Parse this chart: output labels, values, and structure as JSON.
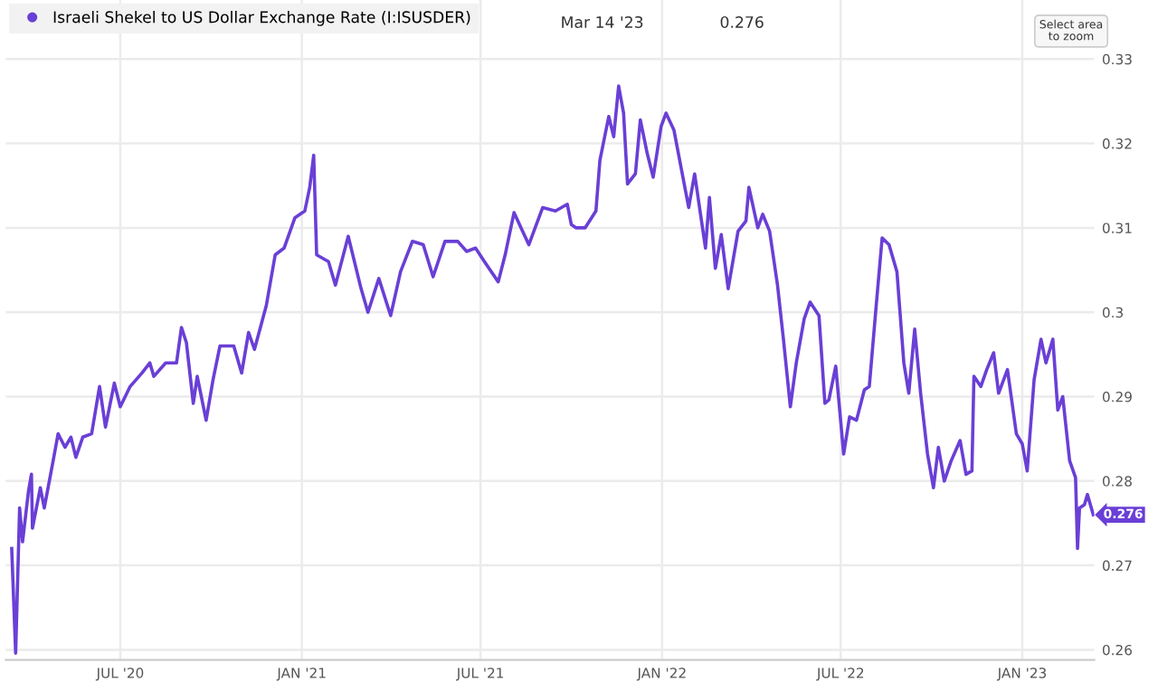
{
  "chart_data": {
    "type": "line",
    "annotations": [
      "Mar 14 '23",
      "0.276",
      "Select area\nto zoom",
      {
        "text": "0.276",
        "x": "2023-03-14",
        "y": 0.276
      }
    ],
    "x": [
      "2020-03-13",
      "2020-03-17",
      "2020-03-21",
      "2020-03-24",
      "2020-03-30",
      "2020-04-02",
      "2020-04-03",
      "2020-04-11",
      "2020-04-15",
      "2020-04-24",
      "2020-04-29",
      "2020-05-06",
      "2020-05-12",
      "2020-05-17",
      "2020-05-24",
      "2020-06-02",
      "2020-06-10",
      "2020-06-16",
      "2020-06-25",
      "2020-07-01",
      "2020-07-11",
      "2020-07-23",
      "2020-07-31",
      "2020-08-04",
      "2020-08-16",
      "2020-08-27",
      "2020-09-01",
      "2020-09-06",
      "2020-09-13",
      "2020-09-17",
      "2020-09-26",
      "2020-10-03",
      "2020-10-10",
      "2020-10-24",
      "2020-11-01",
      "2020-11-08",
      "2020-11-14",
      "2020-11-26",
      "2020-12-05",
      "2020-12-14",
      "2020-12-25",
      "2021-01-04",
      "2021-01-09",
      "2021-01-13",
      "2021-01-16",
      "2021-01-28",
      "2021-02-04",
      "2021-02-17",
      "2021-03-02",
      "2021-03-09",
      "2021-03-20",
      "2021-04-01",
      "2021-04-11",
      "2021-04-23",
      "2021-05-04",
      "2021-05-14",
      "2021-05-26",
      "2021-06-08",
      "2021-06-17",
      "2021-06-26",
      "2021-07-05",
      "2021-07-19",
      "2021-07-26",
      "2021-08-04",
      "2021-08-19",
      "2021-09-02",
      "2021-09-15",
      "2021-09-27",
      "2021-10-01",
      "2021-10-06",
      "2021-10-15",
      "2021-10-26",
      "2021-10-30",
      "2021-11-08",
      "2021-11-13",
      "2021-11-18",
      "2021-11-23",
      "2021-11-27",
      "2021-12-05",
      "2021-12-10",
      "2021-12-17",
      "2021-12-23",
      "2021-12-31",
      "2022-01-05",
      "2022-01-13",
      "2022-01-28",
      "2022-02-03",
      "2022-02-14",
      "2022-02-18",
      "2022-02-24",
      "2022-03-02",
      "2022-03-09",
      "2022-03-19",
      "2022-03-27",
      "2022-03-30",
      "2022-04-08",
      "2022-04-13",
      "2022-04-20",
      "2022-04-28",
      "2022-05-04",
      "2022-05-11",
      "2022-05-17",
      "2022-05-25",
      "2022-05-31",
      "2022-06-09",
      "2022-06-15",
      "2022-06-19",
      "2022-06-26",
      "2022-07-04",
      "2022-07-10",
      "2022-07-17",
      "2022-07-25",
      "2022-07-30",
      "2022-08-06",
      "2022-08-12",
      "2022-08-19",
      "2022-08-27",
      "2022-09-03",
      "2022-09-08",
      "2022-09-14",
      "2022-09-20",
      "2022-09-27",
      "2022-10-03",
      "2022-10-08",
      "2022-10-14",
      "2022-10-21",
      "2022-10-30",
      "2022-11-05",
      "2022-11-11",
      "2022-11-13",
      "2022-11-20",
      "2022-11-26",
      "2022-12-03",
      "2022-12-08",
      "2022-12-17",
      "2022-12-26",
      "2023-01-01",
      "2023-01-06",
      "2023-01-13",
      "2023-01-20",
      "2023-01-25",
      "2023-02-01",
      "2023-02-06",
      "2023-02-11",
      "2023-02-18",
      "2023-02-24",
      "2023-02-26",
      "2023-02-28",
      "2023-03-05",
      "2023-03-08",
      "2023-03-14"
    ],
    "series": [
      {
        "name": "Israeli Shekel to US Dollar Exchange Rate (I:ISUSDER)",
        "color": "#6a3fd6",
        "values": [
          0.272,
          0.2596,
          0.2768,
          0.2728,
          0.2788,
          0.2808,
          0.2744,
          0.2792,
          0.2768,
          0.2824,
          0.2856,
          0.284,
          0.2852,
          0.2828,
          0.2852,
          0.2856,
          0.2912,
          0.2864,
          0.2916,
          0.2888,
          0.2912,
          0.2928,
          0.294,
          0.2924,
          0.294,
          0.294,
          0.2982,
          0.2964,
          0.2892,
          0.2924,
          0.2872,
          0.292,
          0.296,
          0.296,
          0.2928,
          0.2976,
          0.2956,
          0.3008,
          0.3068,
          0.3076,
          0.3112,
          0.312,
          0.3148,
          0.3186,
          0.3068,
          0.306,
          0.3032,
          0.309,
          0.3028,
          0.3,
          0.304,
          0.2996,
          0.3048,
          0.3084,
          0.308,
          0.3042,
          0.3084,
          0.3084,
          0.3072,
          0.3076,
          0.306,
          0.3036,
          0.3068,
          0.3118,
          0.308,
          0.3124,
          0.312,
          0.3128,
          0.3104,
          0.31,
          0.31,
          0.312,
          0.318,
          0.3232,
          0.3208,
          0.3268,
          0.3236,
          0.3152,
          0.3164,
          0.3228,
          0.3188,
          0.316,
          0.322,
          0.3236,
          0.3216,
          0.3124,
          0.3164,
          0.3076,
          0.3136,
          0.3052,
          0.3092,
          0.3028,
          0.3096,
          0.3108,
          0.3148,
          0.31,
          0.3116,
          0.3096,
          0.3032,
          0.2968,
          0.2888,
          0.294,
          0.2992,
          0.3012,
          0.2996,
          0.2892,
          0.2896,
          0.2936,
          0.2832,
          0.2876,
          0.2872,
          0.2908,
          0.2912,
          0.3008,
          0.3088,
          0.308,
          0.3048,
          0.294,
          0.2904,
          0.298,
          0.2904,
          0.2832,
          0.2792,
          0.284,
          0.28,
          0.2824,
          0.2848,
          0.2808,
          0.2812,
          0.2924,
          0.2912,
          0.2932,
          0.2952,
          0.2904,
          0.2932,
          0.2856,
          0.2844,
          0.2812,
          0.292,
          0.2968,
          0.294,
          0.2968,
          0.2884,
          0.29,
          0.2824,
          0.2804,
          0.272,
          0.2768,
          0.2772,
          0.2784,
          0.276
        ]
      }
    ],
    "xlim": [
      "2020-03-07",
      "2023-03-15"
    ],
    "xticks": [
      {
        "value": "2020-07-01",
        "label": "JUL '20"
      },
      {
        "value": "2021-01-01",
        "label": "JAN '21"
      },
      {
        "value": "2021-07-01",
        "label": "JUL '21"
      },
      {
        "value": "2022-01-01",
        "label": "JAN '22"
      },
      {
        "value": "2022-07-01",
        "label": "JUL '22"
      },
      {
        "value": "2023-01-01",
        "label": "JAN '23"
      }
    ],
    "ylim": [
      0.2588,
      0.337
    ],
    "yticks": [
      0.26,
      0.27,
      0.28,
      0.29,
      0.3,
      0.31,
      0.32,
      0.33
    ],
    "grid": true,
    "legend": "top left",
    "marker": "none",
    "line_style": "solid"
  }
}
